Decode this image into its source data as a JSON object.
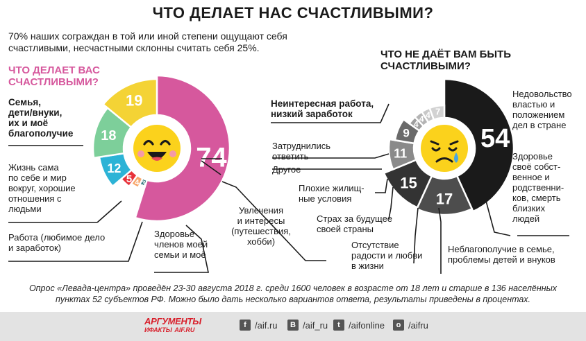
{
  "title": "ЧТО ДЕЛАЕТ НАС СЧАСТЛИВЫМИ?",
  "intro": "70% наших сограждан в той или иной степени ощущают себя счастливыми, несчастными склонны считать себя 25%.",
  "left_title": "ЧТО ДЕЛАЕТ ВАС СЧАСТЛИВЫМИ?",
  "right_title": "ЧТО НЕ ДАЁТ ВАМ БЫТЬ СЧАСТЛИВЫМИ?",
  "colors": {
    "accent_pink": "#d6589d",
    "ring_dark": "#1a1a1a",
    "emoji_yellow": "#fbd21c"
  },
  "chart_data": [
    {
      "type": "pie",
      "title": "ЧТО ДЕЛАЕТ ВАС СЧАСТЛИВЫМИ?",
      "series": [
        {
          "label": "Семья, дети/внуки, их и моё благополучие",
          "value": 74,
          "color": "#d6589d"
        },
        {
          "label": "Затруднились ответить",
          "value": 3,
          "color": "#1e6e72"
        },
        {
          "label": "Другое",
          "value": 4,
          "color": "#f7a66b"
        },
        {
          "label": "Увлечения и интересы (путешествия, хобби)",
          "value": 5,
          "color": "#e8323a"
        },
        {
          "label": "Здоровье членов моей семьи и моё",
          "value": 12,
          "color": "#2cb3d6"
        },
        {
          "label": "Работа (любимое дело и заработок)",
          "value": 18,
          "color": "#7dcf9a"
        },
        {
          "label": "Жизнь сама по себе и мир вокруг, хорошие отношения с людьми",
          "value": 19,
          "color": "#f4d335"
        }
      ]
    },
    {
      "type": "pie",
      "title": "ЧТО НЕ ДАЁТ ВАМ БЫТЬ СЧАСТЛИВЫМИ?",
      "series": [
        {
          "label": "Неинтересная работа, низкий заработок",
          "value": 54,
          "color": "#1a1a1a"
        },
        {
          "label": "Недовольство властью и положением дел в стране",
          "value": 17,
          "color": "#4d4d4d"
        },
        {
          "label": "Здоровье своё собственное и родственников, смерть близких людей",
          "value": 15,
          "color": "#333333"
        },
        {
          "label": "Неблагополучие в семье, проблемы детей и внуков",
          "value": 11,
          "color": "#8a8a8a"
        },
        {
          "label": "Отсутствие радости и любви в жизни",
          "value": 9,
          "color": "#6a6a6a"
        },
        {
          "label": "Страх за будущее своей страны",
          "value": 4,
          "color": "#9e9e9e"
        },
        {
          "label": "Плохие жилищные условия",
          "value": 4,
          "color": "#b4b4b4"
        },
        {
          "label": "Другое",
          "value": 4,
          "color": "#c8c8c8"
        },
        {
          "label": "Затруднились ответить",
          "value": 7,
          "color": "#d2d2d2"
        }
      ]
    }
  ],
  "left_labels": {
    "family": [
      "Семья,",
      "дети/внуки,",
      "их и моё",
      "благополучие"
    ],
    "life": [
      "Жизнь сама",
      "по себе и мир",
      "вокруг, хорошие",
      "отношения с",
      "людьми"
    ],
    "work": [
      "Работа (любимое дело",
      "и заработок)"
    ],
    "health": [
      "Здоровье",
      "членов моей",
      "семьи и моё"
    ],
    "hobby": [
      "Увлечения",
      "и интересы",
      "(путешествия,",
      "хобби)"
    ]
  },
  "right_labels": {
    "difficult": [
      "Затруднились",
      "ответить"
    ],
    "other": "Другое",
    "work": [
      "Неинтересная работа,",
      "низкий заработок"
    ],
    "power": [
      "Недовольство",
      "властью и",
      "положением",
      "дел в стране"
    ],
    "health": [
      "Здоровье",
      "своё собст-",
      "венное и",
      "родственни-",
      "ков, смерть",
      "близких",
      "людей"
    ],
    "housing": [
      "Плохие жилищ-",
      "ные условия"
    ],
    "fear": [
      "Страх за будущее",
      "своей страны"
    ],
    "joy": [
      "Отсутствие",
      "радости и любви",
      "в жизни"
    ],
    "family": [
      "Неблагополучие в семье,",
      "проблемы детей и внуков"
    ]
  },
  "footer_note": "Опрос «Левада-центра» проведён 23-30 августа 2018 г. среди 1600 человек в возрасте от 18 лет и старше в 136 населённых пунктах 52 субъектов РФ. Можно было дать несколько вариантов ответа, результаты приведены в процентах.",
  "brand": {
    "line1": "АРГУМЕНТЫ",
    "line2": "ИФАКТЫ",
    "line2_suffix": "AIF.RU"
  },
  "social": [
    {
      "icon": "facebook-icon",
      "glyph": "f",
      "handle": "/aif.ru"
    },
    {
      "icon": "vk-icon",
      "glyph": "B",
      "handle": "/aif_ru"
    },
    {
      "icon": "twitter-icon",
      "glyph": "t",
      "handle": "/aifonline"
    },
    {
      "icon": "odnoklassniki-icon",
      "glyph": "o",
      "handle": "/aifru"
    }
  ]
}
